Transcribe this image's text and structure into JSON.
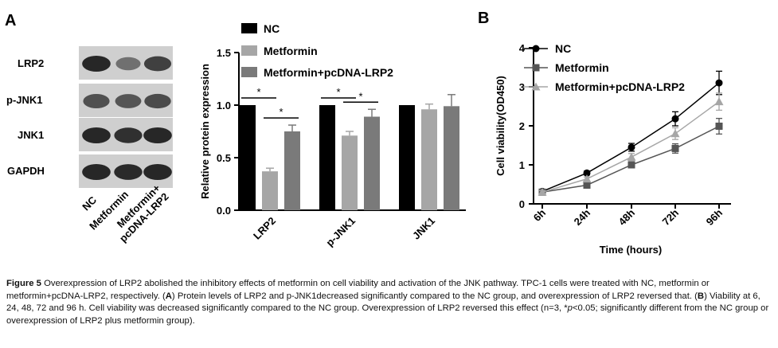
{
  "panels": {
    "a": "A",
    "b": "B"
  },
  "western_blot": {
    "rows": [
      "LRP2",
      "p-JNK1",
      "JNK1",
      "GAPDH"
    ],
    "lanes": [
      "NC",
      "Metformin",
      "Metformin+ pcDNA-LRP2"
    ],
    "intensity": [
      [
        1.0,
        0.55,
        0.85
      ],
      [
        0.75,
        0.72,
        0.78
      ],
      [
        1.0,
        0.95,
        1.0
      ],
      [
        1.0,
        0.98,
        1.0
      ]
    ]
  },
  "chart_data": [
    {
      "type": "bar",
      "ylabel": "Relative protein expression",
      "ylim": [
        0,
        1.5
      ],
      "yticks": [
        "0.0",
        "0.5",
        "1.0",
        "1.5"
      ],
      "categories": [
        "LRP2",
        "p-JNK1",
        "JNK1"
      ],
      "series": [
        {
          "name": "NC",
          "color": "#000000",
          "values": [
            1.0,
            1.0,
            1.0
          ],
          "errors": [
            0,
            0,
            0
          ]
        },
        {
          "name": "Metformin",
          "color": "#a6a6a6",
          "values": [
            0.37,
            0.71,
            0.96
          ],
          "errors": [
            0.03,
            0.04,
            0.05
          ]
        },
        {
          "name": "Metformin+pcDNA-LRP2",
          "color": "#7a7a7a",
          "values": [
            0.75,
            0.89,
            0.99
          ],
          "errors": [
            0.06,
            0.07,
            0.11
          ]
        }
      ],
      "legend_position": "top",
      "significance": [
        {
          "category": 0,
          "from": 0,
          "to": 1,
          "label": "*"
        },
        {
          "category": 0,
          "from": 1,
          "to": 2,
          "label": "*"
        },
        {
          "category": 1,
          "from": 0,
          "to": 1,
          "label": "*"
        },
        {
          "category": 1,
          "from": 1,
          "to": 2,
          "label": "*"
        }
      ]
    },
    {
      "type": "line",
      "xlabel": "Time (hours)",
      "ylabel": "Cell viability(OD450)",
      "ylim": [
        0,
        4
      ],
      "yticks": [
        "0",
        "1",
        "2",
        "3",
        "4"
      ],
      "x": [
        "6h",
        "24h",
        "48h",
        "72h",
        "96h"
      ],
      "series": [
        {
          "name": "NC",
          "color": "#000000",
          "marker": "circle",
          "values": [
            0.32,
            0.79,
            1.45,
            2.18,
            3.1
          ],
          "errors": [
            0.04,
            0.05,
            0.1,
            0.18,
            0.3
          ]
        },
        {
          "name": "Metformin",
          "color": "#555555",
          "marker": "square",
          "values": [
            0.3,
            0.48,
            1.0,
            1.42,
            1.99
          ],
          "errors": [
            0.03,
            0.04,
            0.07,
            0.12,
            0.2
          ]
        },
        {
          "name": "Metformin+pcDNA-LRP2",
          "color": "#a6a6a6",
          "marker": "triangle",
          "values": [
            0.3,
            0.64,
            1.2,
            1.8,
            2.62
          ],
          "errors": [
            0.04,
            0.05,
            0.09,
            0.15,
            0.22
          ]
        }
      ],
      "legend_position": "top-left"
    }
  ],
  "caption": {
    "label": "Figure 5",
    "title": " Overexpression of LRP2 abolished the inhibitory effects of metformin on cell viability and activation of the JNK pathway. TPC-1 cells were treated with NC, metformin or metformin+pcDNA-LRP2, respectively. (",
    "a": "A",
    "part2": ") Protein levels of LRP2 and p-JNK1decreased significantly compared to the NC group, and overexpression of LRP2 reversed that. (",
    "b": "B",
    "part3": ") Viability at 6, 24, 48, 72 and 96 h. Cell viability was decreased significantly compared to the NC group. Overexpression of LRP2 reversed this effect (n=3, *",
    "p": "p",
    "part4": "<0.05; significantly different from the NC group or overexpression of LRP2 plus metformin group)."
  }
}
